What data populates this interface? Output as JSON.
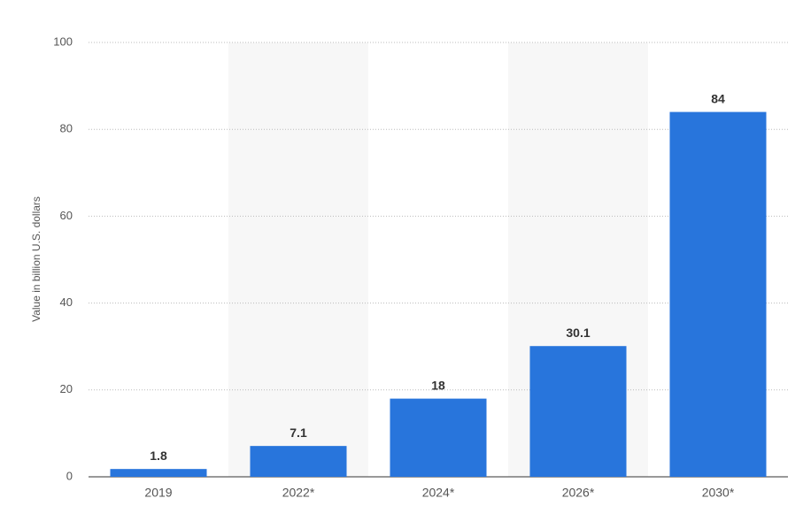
{
  "chart_data": {
    "type": "bar",
    "y_label": "Value in billion U.S. dollars",
    "categories": [
      "2019",
      "2022*",
      "2024*",
      "2026*",
      "2030*"
    ],
    "values": [
      1.8,
      7.1,
      18,
      30.1,
      84
    ],
    "color": "#2875dc",
    "ylim": [
      0,
      100
    ],
    "yticks": [
      0,
      20,
      40,
      60,
      80,
      100
    ],
    "grid": true
  }
}
